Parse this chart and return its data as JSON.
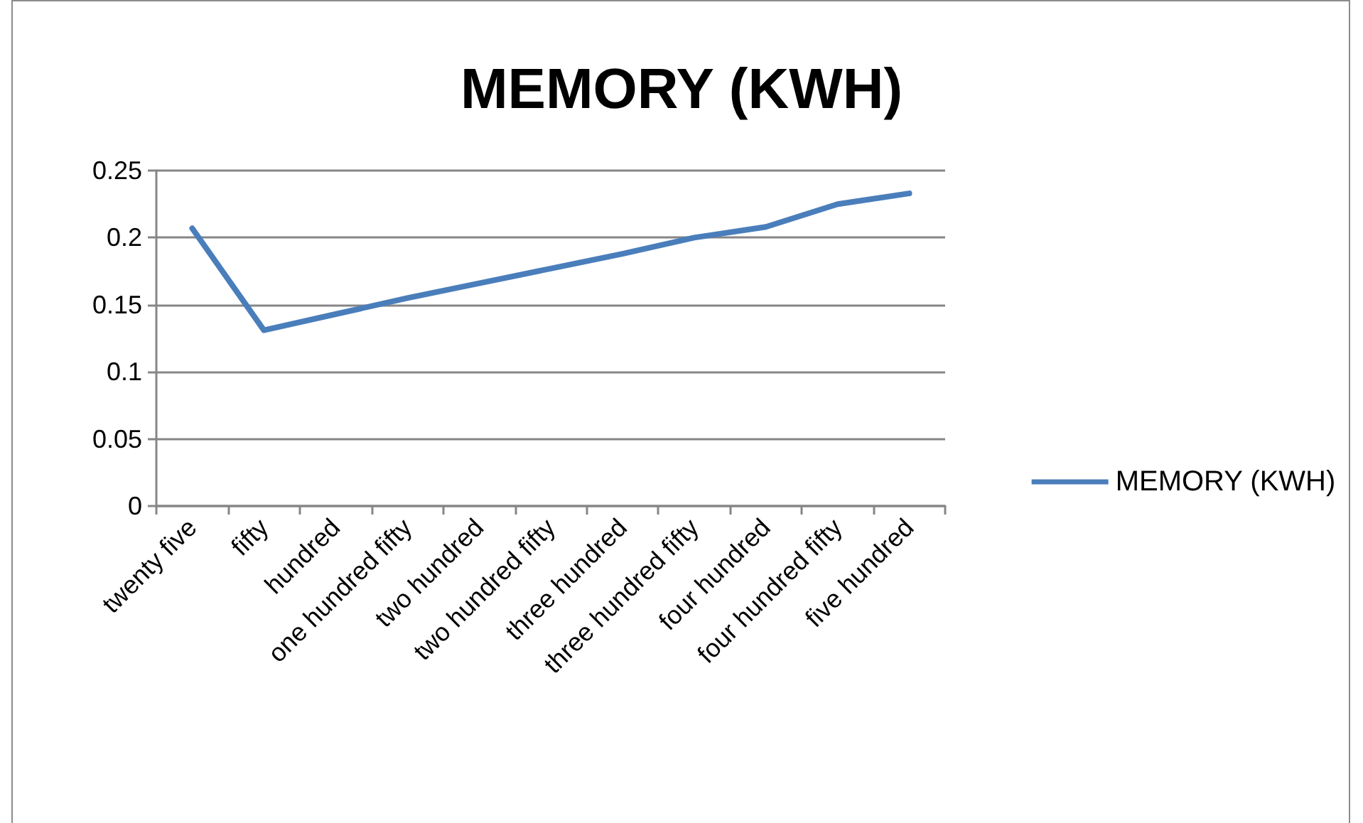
{
  "chart_data": {
    "type": "line",
    "title": "MEMORY (KWH)",
    "categories": [
      "twenty five",
      "fifty",
      "hundred",
      "one hundred fifty",
      "two hundred",
      "two hundred fifty",
      "three hundred",
      "three hundred fifty",
      "four hundred",
      "four hundred fifty",
      "five hundred"
    ],
    "series": [
      {
        "name": "MEMORY (KWH)",
        "color": "#4a7ebb",
        "values": [
          0.207,
          0.131,
          0.143,
          0.155,
          0.166,
          0.177,
          0.188,
          0.2,
          0.208,
          0.225,
          0.233
        ]
      }
    ],
    "ylim": [
      0,
      0.25
    ],
    "yticks": [
      0,
      0.05,
      0.1,
      0.15,
      0.2,
      0.25
    ],
    "grid": "y",
    "legend": "right"
  }
}
